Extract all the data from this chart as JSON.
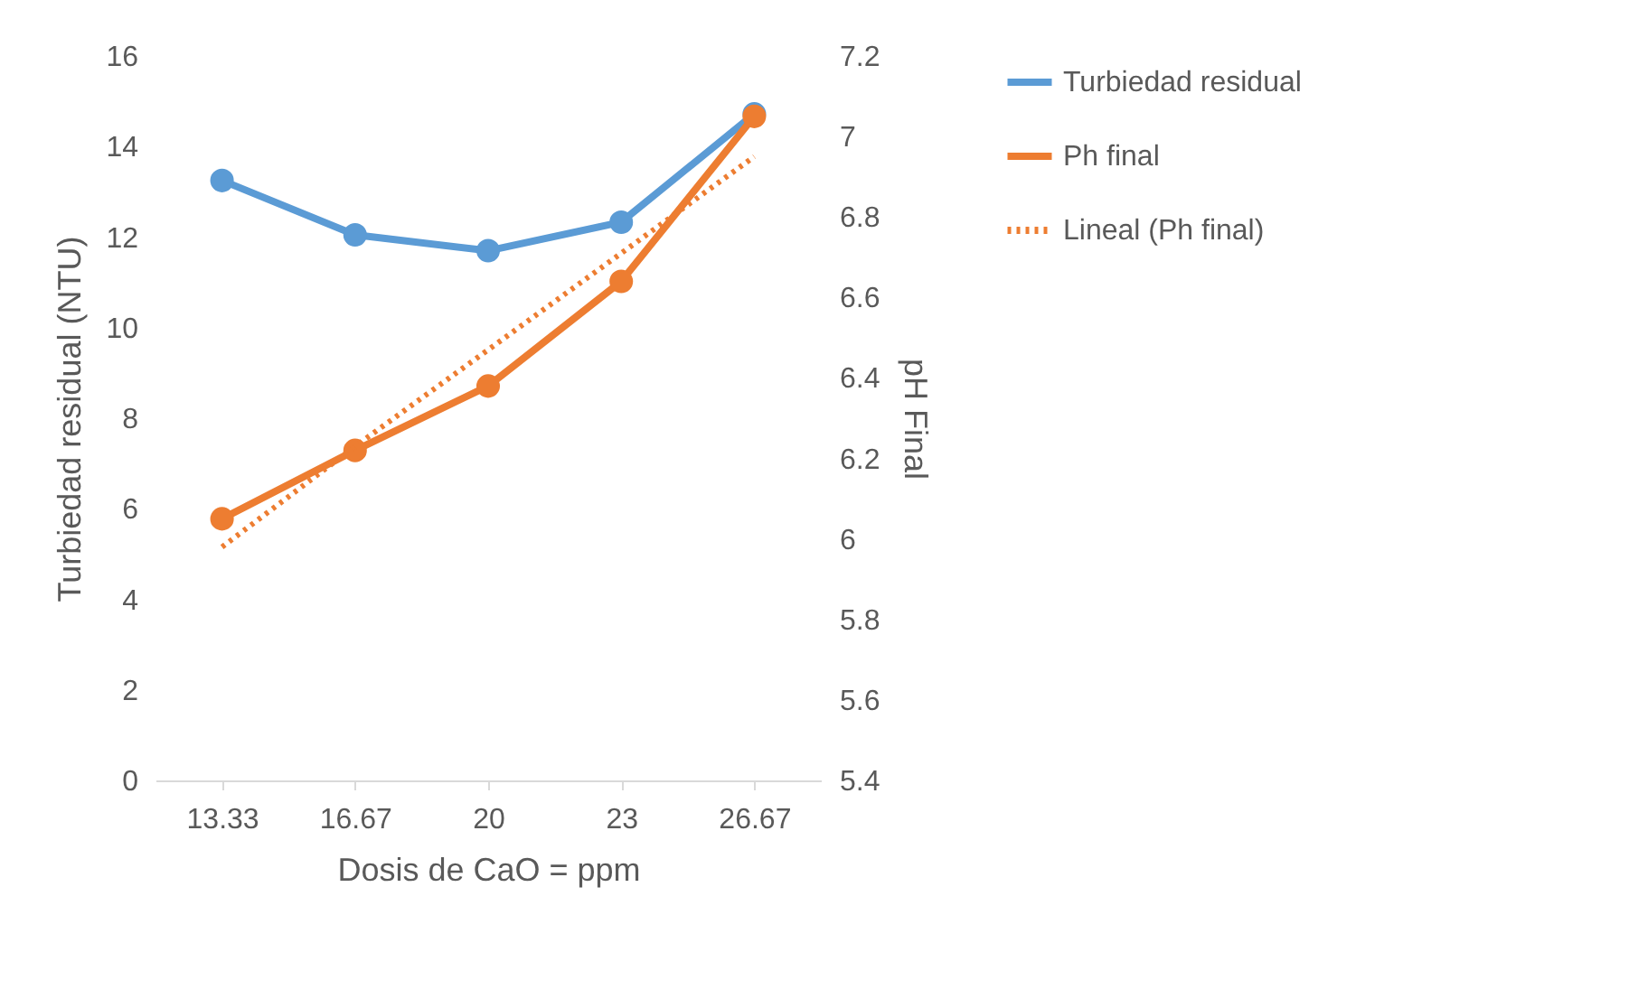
{
  "chart_data": {
    "type": "line",
    "xlabel": "Dosis de CaO = ppm",
    "ylabel": "Turbiedad residual (NTU)",
    "y2label": "pH Final",
    "categories": [
      "13.33",
      "16.67",
      "20",
      "23",
      "26.67"
    ],
    "series": [
      {
        "name": "Turbiedad residual",
        "color": "#5b9bd5",
        "values": [
          13.25,
          12.05,
          11.7,
          12.33,
          14.72
        ]
      },
      {
        "name": "Ph final",
        "color": "#ed7d31",
        "axis": "y2",
        "values": [
          6.05,
          6.22,
          6.38,
          6.64,
          7.05
        ]
      },
      {
        "name": "Lineal (Ph final)",
        "color": "#ed7d31",
        "axis": "y2",
        "marker": "none",
        "line_style": "dotted",
        "values": [
          5.98,
          6.23,
          6.47,
          6.71,
          6.95
        ]
      }
    ],
    "ylim": [
      0,
      16
    ],
    "yticks": [
      0,
      2,
      4,
      6,
      8,
      10,
      12,
      14,
      16
    ],
    "y2lim": [
      5.4,
      7.2
    ],
    "y2ticks": [
      5.4,
      5.6,
      5.8,
      6,
      6.2,
      6.4,
      6.6,
      6.8,
      7,
      7.2
    ],
    "marker": "circle",
    "legend": "right"
  }
}
